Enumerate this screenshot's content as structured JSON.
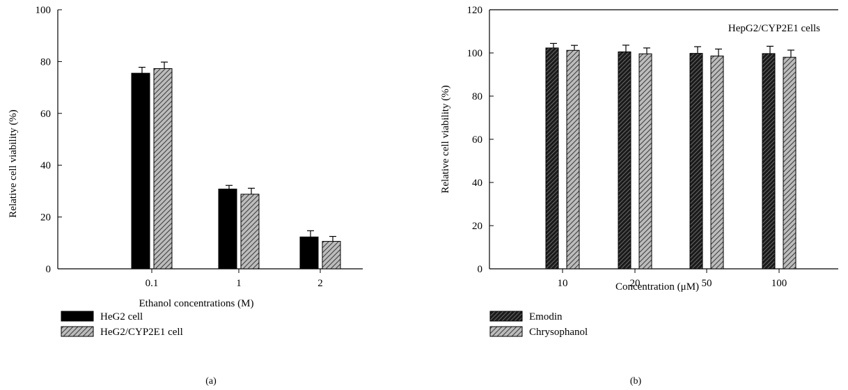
{
  "chart_data": [
    {
      "type": "bar",
      "panel_label": "(a)",
      "title": "",
      "xlabel": "Ethanol concentrations (M)",
      "ylabel": "Relative cell viability (%)",
      "ylim": [
        0,
        100
      ],
      "yticks": [
        0,
        20,
        40,
        60,
        80,
        100
      ],
      "categories": [
        "0.1",
        "1",
        "2"
      ],
      "series": [
        {
          "name": "HeG2 cell",
          "values": [
            75.5,
            30.8,
            12.3
          ],
          "errors": [
            2.3,
            1.4,
            2.4
          ],
          "fill": "solid",
          "color": "#000000"
        },
        {
          "name": "HeG2/CYP2E1 cell",
          "values": [
            77.3,
            28.8,
            10.6
          ],
          "errors": [
            2.5,
            2.3,
            1.9
          ],
          "fill": "hatch",
          "color": "#bcbcbc"
        }
      ],
      "annotation": "",
      "grid": false,
      "legend_position": "below"
    },
    {
      "type": "bar",
      "panel_label": "(b)",
      "title": "",
      "xlabel": "Concentration (μM)",
      "ylabel": "Relative cell viability (%)",
      "ylim": [
        0,
        120
      ],
      "yticks": [
        0,
        20,
        40,
        60,
        80,
        100,
        120
      ],
      "categories": [
        "10",
        "20",
        "50",
        "100"
      ],
      "series": [
        {
          "name": "Emodin",
          "values": [
            102.3,
            100.5,
            99.8,
            99.7
          ],
          "errors": [
            2.1,
            3.1,
            3.1,
            3.4
          ],
          "fill": "hatch",
          "color": "#222222"
        },
        {
          "name": "Chrysophanol",
          "values": [
            101.2,
            99.6,
            98.6,
            98.0
          ],
          "errors": [
            2.3,
            2.7,
            3.2,
            3.3
          ],
          "fill": "hatch",
          "color": "#bcbcbc"
        }
      ],
      "annotation": "HepG2/CYP2E1 cells",
      "grid": false,
      "legend_position": "below"
    }
  ]
}
